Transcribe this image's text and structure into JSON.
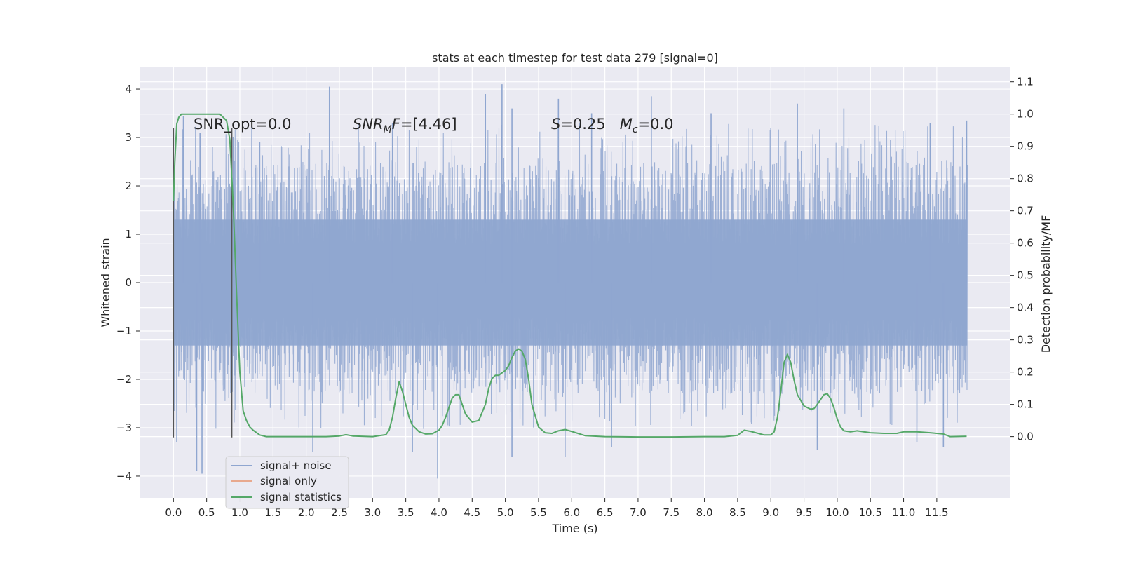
{
  "chart_data": {
    "type": "line",
    "title": "stats at each timestep for test data 279 [signal=0]",
    "xlabel": "Time (s)",
    "ylabel_left": "Whitened strain",
    "ylabel_right": "Detection probability/MF",
    "xlim": [
      -0.5,
      12.6
    ],
    "ylim_left": [
      -4.45,
      4.45
    ],
    "ylim_right": [
      -0.19,
      1.145
    ],
    "grid": true,
    "legend_placement": "lower-left",
    "x_ticks": [
      "0.0",
      "0.5",
      "1.0",
      "1.5",
      "2.0",
      "2.5",
      "3.0",
      "3.5",
      "4.0",
      "4.5",
      "5.0",
      "5.5",
      "6.0",
      "6.5",
      "7.0",
      "7.5",
      "8.0",
      "8.5",
      "9.0",
      "9.5",
      "10.0",
      "10.5",
      "11.0",
      "11.5"
    ],
    "y_ticks_left": [
      "4",
      "3",
      "2",
      "1",
      "0",
      "−1",
      "−2",
      "−3",
      "−4"
    ],
    "y_ticks_right": [
      "1.1",
      "1.0",
      "0.9",
      "0.8",
      "0.7",
      "0.6",
      "0.5",
      "0.4",
      "0.3",
      "0.2",
      "0.1",
      "0.0"
    ],
    "annotations": {
      "snr_opt": "SNR_opt=0.0",
      "snr_mf_prefix": "SNR",
      "snr_mf_sub": "M",
      "snr_mf_suffix": "F=[4.46]",
      "s_label": "S",
      "s_value": "=0.25",
      "mc_label": "M",
      "mc_sub": "c",
      "mc_value": "=0.0"
    },
    "series": [
      {
        "name": "signal+ noise",
        "color": "#8fa6d0",
        "x_range": [
          0.0,
          11.96
        ],
        "core_band": [
          -1.3,
          1.3
        ],
        "typical_envelope": [
          -2.3,
          2.8
        ],
        "peaks": [
          {
            "x": 0.15,
            "y": 3.45
          },
          {
            "x": 0.4,
            "y": 3.1
          },
          {
            "x": 0.9,
            "y": 3.0
          },
          {
            "x": 1.3,
            "y": 2.9
          },
          {
            "x": 2.35,
            "y": 4.05
          },
          {
            "x": 3.3,
            "y": 3.3
          },
          {
            "x": 4.7,
            "y": 3.9
          },
          {
            "x": 4.95,
            "y": 4.1
          },
          {
            "x": 5.1,
            "y": 3.6
          },
          {
            "x": 5.8,
            "y": 3.8
          },
          {
            "x": 6.3,
            "y": 3.5
          },
          {
            "x": 7.2,
            "y": 3.85
          },
          {
            "x": 8.1,
            "y": 3.5
          },
          {
            "x": 9.4,
            "y": 3.7
          },
          {
            "x": 10.1,
            "y": 3.6
          },
          {
            "x": 11.4,
            "y": 3.3
          },
          {
            "x": 11.95,
            "y": 3.35
          }
        ],
        "troughs": [
          {
            "x": 0.05,
            "y": -3.3
          },
          {
            "x": 0.35,
            "y": -3.9
          },
          {
            "x": 0.43,
            "y": -3.95
          },
          {
            "x": 2.1,
            "y": -3.5
          },
          {
            "x": 3.6,
            "y": -3.5
          },
          {
            "x": 3.98,
            "y": -4.05
          },
          {
            "x": 5.1,
            "y": -3.6
          },
          {
            "x": 5.9,
            "y": -3.6
          },
          {
            "x": 6.6,
            "y": -3.4
          },
          {
            "x": 9.7,
            "y": -3.45
          },
          {
            "x": 11.2,
            "y": -3.3
          },
          {
            "x": 11.6,
            "y": -3.4
          }
        ]
      },
      {
        "name": "signal only",
        "color": "#e8a98e",
        "x": [],
        "y": []
      },
      {
        "name": "signal statistics",
        "color": "#55a868",
        "axis": "right",
        "x": [
          0.0,
          0.02,
          0.05,
          0.08,
          0.12,
          0.15,
          0.2,
          0.3,
          0.4,
          0.5,
          0.6,
          0.7,
          0.75,
          0.8,
          0.85,
          0.9,
          0.95,
          1.0,
          1.05,
          1.1,
          1.15,
          1.2,
          1.3,
          1.4,
          1.5,
          1.7,
          2.0,
          2.3,
          2.5,
          2.6,
          2.7,
          3.0,
          3.2,
          3.25,
          3.3,
          3.35,
          3.4,
          3.45,
          3.5,
          3.55,
          3.6,
          3.7,
          3.8,
          3.9,
          4.0,
          4.05,
          4.1,
          4.15,
          4.2,
          4.25,
          4.3,
          4.35,
          4.4,
          4.5,
          4.6,
          4.7,
          4.75,
          4.8,
          4.85,
          4.9,
          5.0,
          5.05,
          5.1,
          5.15,
          5.2,
          5.25,
          5.3,
          5.35,
          5.4,
          5.5,
          5.6,
          5.7,
          5.8,
          5.9,
          6.0,
          6.2,
          6.5,
          7.0,
          7.5,
          8.0,
          8.3,
          8.5,
          8.6,
          8.7,
          8.9,
          9.0,
          9.05,
          9.1,
          9.15,
          9.2,
          9.25,
          9.3,
          9.35,
          9.4,
          9.5,
          9.6,
          9.65,
          9.7,
          9.75,
          9.8,
          9.85,
          9.9,
          9.95,
          10.0,
          10.05,
          10.1,
          10.2,
          10.3,
          10.5,
          10.7,
          10.9,
          11.0,
          11.2,
          11.4,
          11.6,
          11.7,
          11.95
        ],
        "y": [
          0.73,
          0.85,
          0.97,
          0.99,
          1.0,
          1.0,
          1.0,
          1.0,
          1.0,
          1.0,
          1.0,
          1.0,
          0.99,
          0.98,
          0.92,
          0.72,
          0.45,
          0.2,
          0.08,
          0.05,
          0.03,
          0.02,
          0.005,
          0.0,
          0.0,
          0.0,
          0.0,
          0.0,
          0.002,
          0.006,
          0.002,
          0.0,
          0.006,
          0.02,
          0.06,
          0.12,
          0.17,
          0.14,
          0.1,
          0.06,
          0.035,
          0.015,
          0.008,
          0.009,
          0.02,
          0.035,
          0.06,
          0.09,
          0.12,
          0.13,
          0.13,
          0.1,
          0.07,
          0.045,
          0.05,
          0.1,
          0.15,
          0.18,
          0.19,
          0.19,
          0.205,
          0.22,
          0.245,
          0.265,
          0.272,
          0.265,
          0.24,
          0.18,
          0.1,
          0.03,
          0.012,
          0.01,
          0.018,
          0.022,
          0.016,
          0.003,
          0.0,
          -0.001,
          -0.001,
          0.0,
          0.0,
          0.004,
          0.02,
          0.016,
          0.005,
          0.005,
          0.015,
          0.06,
          0.14,
          0.23,
          0.255,
          0.23,
          0.175,
          0.13,
          0.095,
          0.085,
          0.087,
          0.1,
          0.115,
          0.13,
          0.133,
          0.118,
          0.09,
          0.055,
          0.03,
          0.018,
          0.015,
          0.018,
          0.012,
          0.01,
          0.01,
          0.015,
          0.015,
          0.012,
          0.008,
          0.0,
          0.001
        ]
      }
    ],
    "vertical_markers": [
      {
        "x": 0.0,
        "y_range": [
          -3.2,
          3.2
        ],
        "color": "#555555"
      },
      {
        "x": 0.88,
        "y_range": [
          -3.2,
          3.2
        ],
        "color": "#555555"
      }
    ],
    "legend_entries": [
      "signal+ noise",
      "signal only",
      "signal statistics"
    ]
  }
}
